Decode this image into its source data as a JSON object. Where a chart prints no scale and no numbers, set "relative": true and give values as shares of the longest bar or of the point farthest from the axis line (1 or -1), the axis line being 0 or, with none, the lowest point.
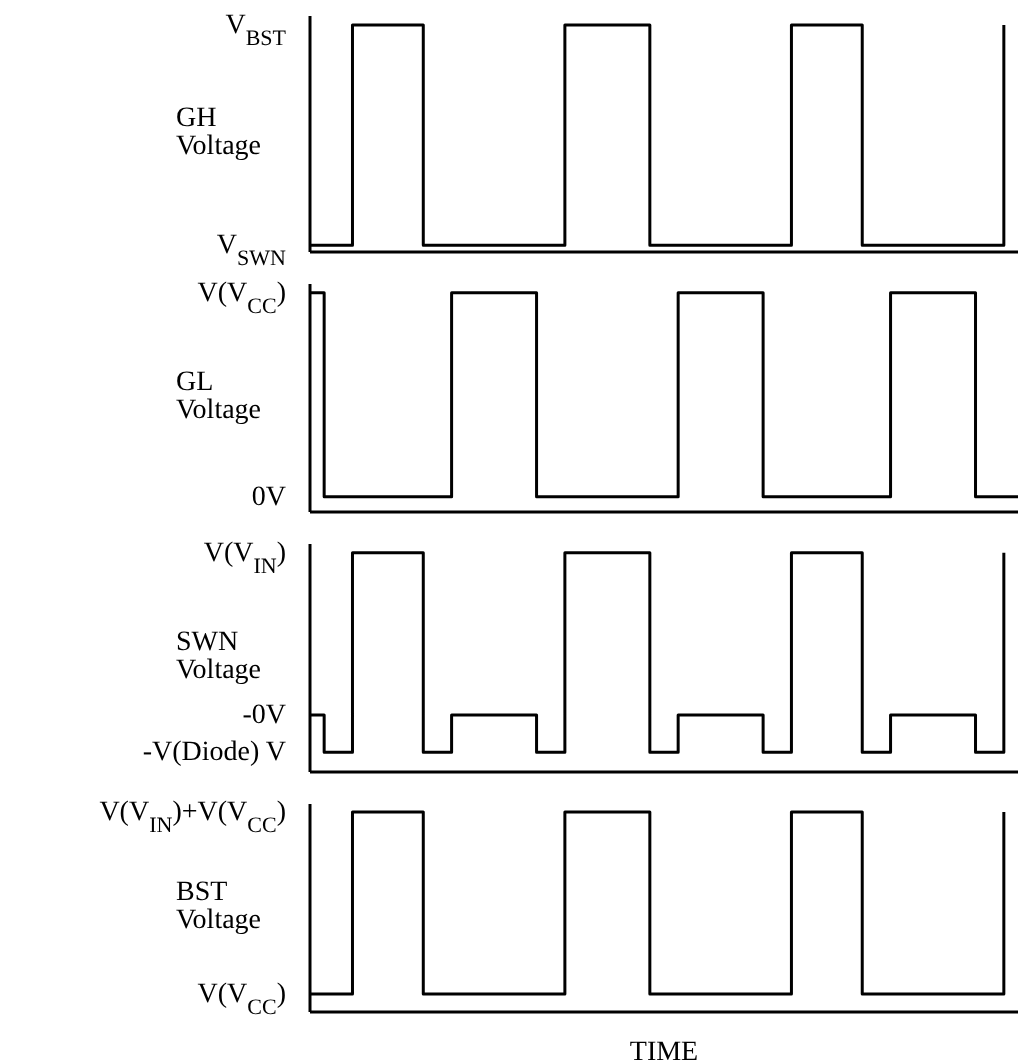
{
  "chart_data": [
    {
      "type": "step",
      "relative": true,
      "ylabel": "GH Voltage",
      "categories": [
        null,
        null,
        null,
        null,
        null,
        null,
        null,
        null,
        null,
        null,
        null,
        null,
        null,
        null,
        null,
        null,
        null,
        null,
        null,
        null,
        null,
        null,
        null,
        null,
        null,
        null,
        null,
        null,
        null,
        null,
        null,
        null,
        null,
        null,
        null,
        null,
        null,
        null,
        null,
        null,
        null,
        null,
        null,
        null,
        null,
        null,
        null,
        null,
        null,
        null,
        null
      ],
      "annotations": [
        "V$_{BST}$",
        "V$_{SWN}$"
      ],
      "series": [
        {
          "color": "#000000",
          "values": [
            0.03,
            0.03,
            0.03,
            1,
            1,
            1,
            1,
            1,
            0.03,
            0.03,
            0.03,
            0.03,
            0.03,
            0.03,
            0.03,
            0.03,
            0.03,
            0.03,
            1,
            1,
            1,
            1,
            1,
            1,
            0.03,
            0.03,
            0.03,
            0.03,
            0.03,
            0.03,
            0.03,
            0.03,
            0.03,
            0.03,
            1,
            1,
            1,
            1,
            1,
            0.03,
            0.03,
            0.03,
            0.03,
            0.03,
            0.03,
            0.03,
            0.03,
            0.03,
            0.03,
            1,
            null
          ]
        }
      ]
    },
    {
      "type": "step",
      "relative": true,
      "ylabel": "GL Voltage",
      "categories": [
        null,
        null,
        null,
        null,
        null,
        null,
        null,
        null,
        null,
        null,
        null,
        null,
        null,
        null,
        null,
        null,
        null,
        null,
        null,
        null,
        null,
        null,
        null,
        null,
        null,
        null,
        null,
        null,
        null,
        null,
        null,
        null,
        null,
        null,
        null,
        null,
        null,
        null,
        null,
        null,
        null,
        null,
        null,
        null,
        null,
        null,
        null,
        null,
        null,
        null,
        null
      ],
      "annotations": [
        "V(V$_{CC}$)",
        "0V"
      ],
      "series": [
        {
          "color": "#000000",
          "values": [
            1,
            0.07,
            0.07,
            0.07,
            0.07,
            0.07,
            0.07,
            0.07,
            0.07,
            0.07,
            1,
            1,
            1,
            1,
            1,
            1,
            0.07,
            0.07,
            0.07,
            0.07,
            0.07,
            0.07,
            0.07,
            0.07,
            0.07,
            0.07,
            1,
            1,
            1,
            1,
            1,
            1,
            0.07,
            0.07,
            0.07,
            0.07,
            0.07,
            0.07,
            0.07,
            0.07,
            0.07,
            1,
            1,
            1,
            1,
            1,
            1,
            0.07,
            0.07,
            0.07,
            0.07
          ]
        }
      ]
    },
    {
      "type": "step",
      "relative": true,
      "ylabel": "SWN Voltage",
      "categories": [
        null,
        null,
        null,
        null,
        null,
        null,
        null,
        null,
        null,
        null,
        null,
        null,
        null,
        null,
        null,
        null,
        null,
        null,
        null,
        null,
        null,
        null,
        null,
        null,
        null,
        null,
        null,
        null,
        null,
        null,
        null,
        null,
        null,
        null,
        null,
        null,
        null,
        null,
        null,
        null,
        null,
        null,
        null,
        null,
        null,
        null,
        null,
        null,
        null,
        null,
        null
      ],
      "annotations": [
        "V(V$_{IN}$)",
        "-0V",
        "-V(Diode) V"
      ],
      "series": [
        {
          "color": "#000000",
          "values": [
            0.26,
            0.09,
            0.09,
            1,
            1,
            1,
            1,
            1,
            0.09,
            0.09,
            0.26,
            0.26,
            0.26,
            0.26,
            0.26,
            0.26,
            0.09,
            0.09,
            1,
            1,
            1,
            1,
            1,
            1,
            0.09,
            0.09,
            0.26,
            0.26,
            0.26,
            0.26,
            0.26,
            0.26,
            0.09,
            0.09,
            1,
            1,
            1,
            1,
            1,
            0.09,
            0.09,
            0.26,
            0.26,
            0.26,
            0.26,
            0.26,
            0.26,
            0.09,
            0.09,
            1,
            null
          ]
        }
      ]
    },
    {
      "type": "step",
      "relative": true,
      "ylabel": "BST Voltage",
      "xlabel": "TIME",
      "categories": [
        null,
        null,
        null,
        null,
        null,
        null,
        null,
        null,
        null,
        null,
        null,
        null,
        null,
        null,
        null,
        null,
        null,
        null,
        null,
        null,
        null,
        null,
        null,
        null,
        null,
        null,
        null,
        null,
        null,
        null,
        null,
        null,
        null,
        null,
        null,
        null,
        null,
        null,
        null,
        null,
        null,
        null,
        null,
        null,
        null,
        null,
        null,
        null,
        null,
        null,
        null
      ],
      "annotations": [
        "V(V$_{IN}$)+V(V$_{CC}$)",
        "V(V$_{CC}$)"
      ],
      "series": [
        {
          "color": "#000000",
          "values": [
            0.09,
            0.09,
            0.09,
            1,
            1,
            1,
            1,
            1,
            0.09,
            0.09,
            0.09,
            0.09,
            0.09,
            0.09,
            0.09,
            0.09,
            0.09,
            0.09,
            1,
            1,
            1,
            1,
            1,
            1,
            0.09,
            0.09,
            0.09,
            0.09,
            0.09,
            0.09,
            0.09,
            0.09,
            0.09,
            0.09,
            1,
            1,
            1,
            1,
            1,
            0.09,
            0.09,
            0.09,
            0.09,
            0.09,
            0.09,
            0.09,
            0.09,
            0.09,
            0.09,
            1,
            null
          ]
        }
      ]
    }
  ]
}
